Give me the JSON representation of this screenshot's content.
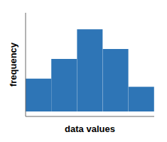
{
  "chart_data": {
    "type": "bar",
    "categories": [
      null,
      null,
      null,
      null,
      null
    ],
    "values": [
      2,
      3.2,
      5,
      3.8,
      1.5
    ],
    "color": "#2E75B6",
    "xlabel": "data values",
    "ylabel": "frequency",
    "ylim": [
      -0.3,
      6.0
    ],
    "tick_labels": false
  }
}
